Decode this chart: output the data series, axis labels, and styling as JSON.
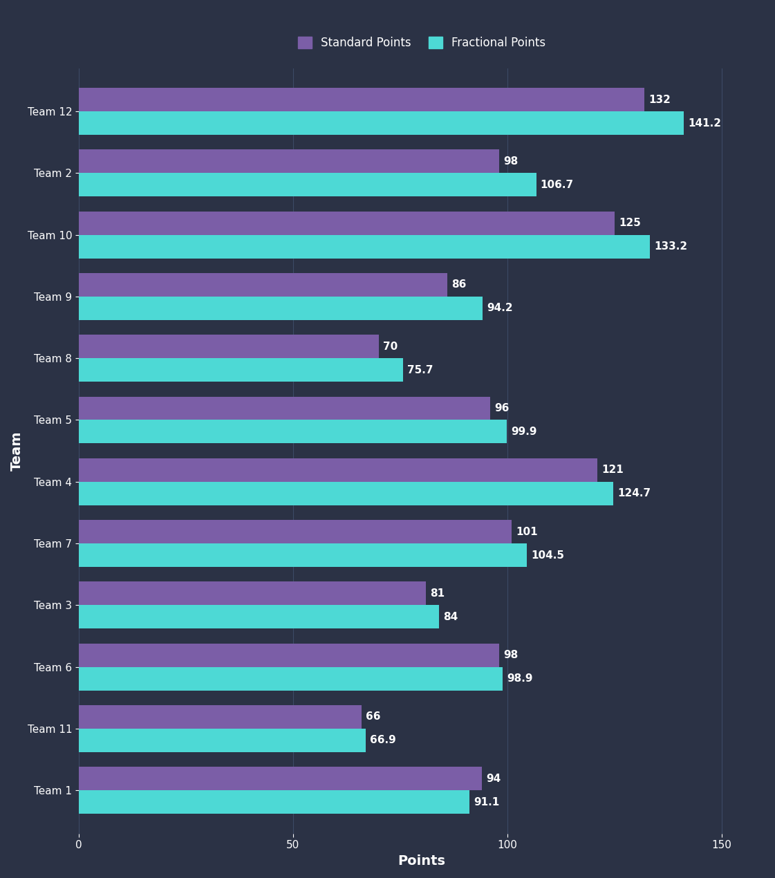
{
  "teams": [
    "Team 1",
    "Team 11",
    "Team 6",
    "Team 3",
    "Team 7",
    "Team 4",
    "Team 5",
    "Team 8",
    "Team 9",
    "Team 10",
    "Team 2",
    "Team 12"
  ],
  "standard_points": [
    94,
    66,
    98,
    81,
    101,
    121,
    96,
    70,
    86,
    125,
    98,
    132
  ],
  "fractional_points": [
    91.1,
    66.9,
    98.9,
    84,
    104.5,
    124.7,
    99.9,
    75.7,
    94.2,
    133.2,
    106.7,
    141.2
  ],
  "standard_color": "#7B5EA7",
  "fractional_color": "#4DD9D5",
  "background_color": "#2B3245",
  "text_color": "#FFFFFF",
  "xlabel": "Points",
  "ylabel": "Team",
  "xlim": [
    0,
    160
  ],
  "bar_height": 0.38,
  "legend_labels": [
    "Standard Points",
    "Fractional Points"
  ],
  "grid_color": "#3D4A66",
  "axis_label_fontsize": 14,
  "tick_fontsize": 11,
  "value_fontsize": 11
}
